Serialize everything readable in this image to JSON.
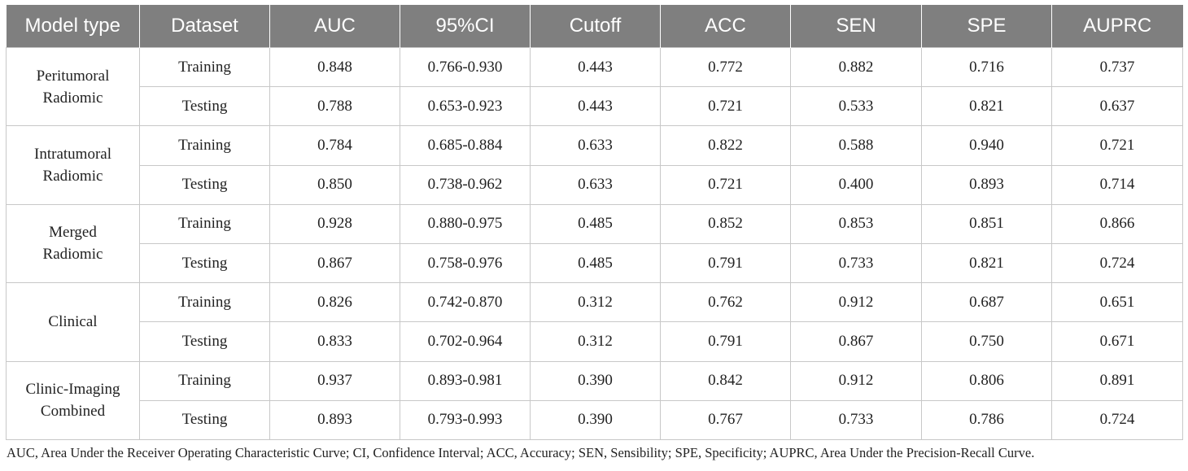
{
  "headers": [
    "Model type",
    "Dataset",
    "AUC",
    "95%CI",
    "Cutoff",
    "ACC",
    "SEN",
    "SPE",
    "AUPRC"
  ],
  "groups": [
    {
      "model_lines": [
        "Peritumoral",
        "Radiomic"
      ],
      "rows": [
        [
          "Training",
          "0.848",
          "0.766-0.930",
          "0.443",
          "0.772",
          "0.882",
          "0.716",
          "0.737"
        ],
        [
          "Testing",
          "0.788",
          "0.653-0.923",
          "0.443",
          "0.721",
          "0.533",
          "0.821",
          "0.637"
        ]
      ]
    },
    {
      "model_lines": [
        "Intratumoral",
        "Radiomic"
      ],
      "rows": [
        [
          "Training",
          "0.784",
          "0.685-0.884",
          "0.633",
          "0.822",
          "0.588",
          "0.940",
          "0.721"
        ],
        [
          "Testing",
          "0.850",
          "0.738-0.962",
          "0.633",
          "0.721",
          "0.400",
          "0.893",
          "0.714"
        ]
      ]
    },
    {
      "model_lines": [
        "Merged",
        "Radiomic"
      ],
      "rows": [
        [
          "Training",
          "0.928",
          "0.880-0.975",
          "0.485",
          "0.852",
          "0.853",
          "0.851",
          "0.866"
        ],
        [
          "Testing",
          "0.867",
          "0.758-0.976",
          "0.485",
          "0.791",
          "0.733",
          "0.821",
          "0.724"
        ]
      ]
    },
    {
      "model_lines": [
        "Clinical"
      ],
      "rows": [
        [
          "Training",
          "0.826",
          "0.742-0.870",
          "0.312",
          "0.762",
          "0.912",
          "0.687",
          "0.651"
        ],
        [
          "Testing",
          "0.833",
          "0.702-0.964",
          "0.312",
          "0.791",
          "0.867",
          "0.750",
          "0.671"
        ]
      ]
    },
    {
      "model_lines": [
        "Clinic-Imaging",
        "Combined"
      ],
      "rows": [
        [
          "Training",
          "0.937",
          "0.893-0.981",
          "0.390",
          "0.842",
          "0.912",
          "0.806",
          "0.891"
        ],
        [
          "Testing",
          "0.893",
          "0.793-0.993",
          "0.390",
          "0.767",
          "0.733",
          "0.786",
          "0.724"
        ]
      ]
    }
  ],
  "footnote": "AUC, Area Under the Receiver Operating Characteristic Curve; CI, Confidence Interval; ACC, Accuracy; SEN, Sensibility; SPE, Specificity; AUPRC, Area Under the Precision-Recall Curve."
}
